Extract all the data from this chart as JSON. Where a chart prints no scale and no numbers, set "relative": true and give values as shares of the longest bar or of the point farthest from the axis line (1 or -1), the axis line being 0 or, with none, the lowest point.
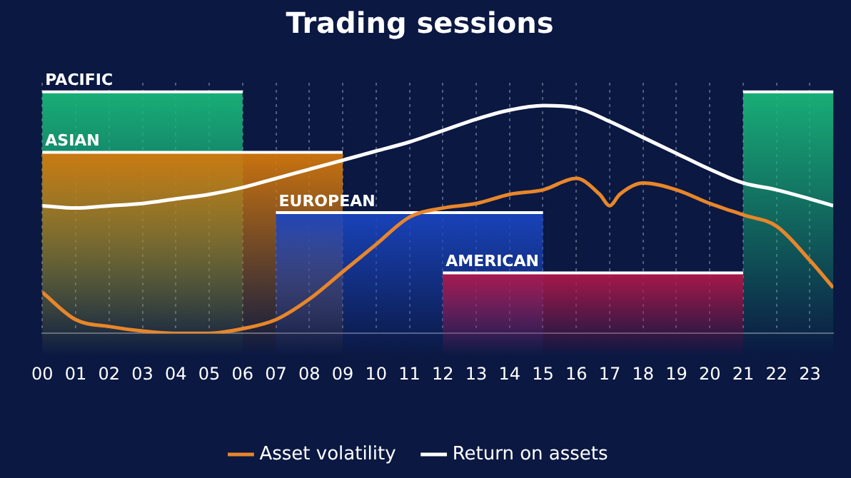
{
  "chart_data": {
    "type": "line",
    "title": "Trading sessions",
    "relative": true,
    "grid": "x",
    "legend": "bottom",
    "xlim": [
      0,
      23.7
    ],
    "xticks": [
      {
        "value": 0,
        "label": "00"
      },
      {
        "value": 1,
        "label": "01"
      },
      {
        "value": 2,
        "label": "02"
      },
      {
        "value": 3,
        "label": "03"
      },
      {
        "value": 4,
        "label": "04"
      },
      {
        "value": 5,
        "label": "05"
      },
      {
        "value": 6,
        "label": "06"
      },
      {
        "value": 7,
        "label": "07"
      },
      {
        "value": 8,
        "label": "08"
      },
      {
        "value": 9,
        "label": "09"
      },
      10,
      11,
      12,
      13,
      14,
      15,
      16,
      17,
      18,
      19,
      20,
      21,
      22,
      23
    ],
    "series": [
      {
        "name": "Asset volatility",
        "color": "#e8862a",
        "x": [
          0,
          1,
          2,
          3,
          4,
          5,
          6,
          7,
          8,
          9,
          10,
          11,
          12,
          13,
          14,
          15,
          16,
          16.7,
          17,
          17.3,
          18,
          19,
          20,
          21,
          22,
          23,
          23.7
        ],
        "values": [
          0.18,
          0.06,
          0.03,
          0.01,
          0,
          0,
          0.02,
          0.06,
          0.15,
          0.27,
          0.39,
          0.51,
          0.55,
          0.57,
          0.61,
          0.63,
          0.68,
          0.61,
          0.56,
          0.61,
          0.66,
          0.63,
          0.57,
          0.52,
          0.47,
          0.32,
          0.2
        ]
      },
      {
        "name": "Return on assets",
        "color": "#ffffff",
        "x": [
          0,
          1,
          2,
          3,
          4,
          5,
          6,
          7,
          8,
          9,
          10,
          11,
          12,
          13,
          14,
          15,
          16,
          17,
          18,
          19,
          20,
          21,
          22,
          23,
          23.7
        ],
        "values": [
          0.56,
          0.55,
          0.56,
          0.57,
          0.59,
          0.61,
          0.64,
          0.68,
          0.72,
          0.76,
          0.8,
          0.84,
          0.89,
          0.94,
          0.98,
          1,
          0.99,
          0.93,
          0.86,
          0.79,
          0.72,
          0.66,
          0.63,
          0.59,
          0.56
        ]
      }
    ],
    "bands": [
      {
        "axis": "x",
        "from": 0,
        "to": 6,
        "label": "PACIFIC",
        "color": "#19b67a"
      },
      {
        "axis": "x",
        "from": 0,
        "to": 9,
        "label": "ASIAN",
        "color": "#d4780c"
      },
      {
        "axis": "x",
        "from": 7,
        "to": 15,
        "label": "EUROPEAN",
        "color": "#1a45c0"
      },
      {
        "axis": "x",
        "from": 12,
        "to": 21,
        "label": "AMERICAN",
        "color": "#b0184a"
      },
      {
        "axis": "x",
        "from": 21,
        "to": 23.7,
        "label": null,
        "color": "#19b67a"
      }
    ]
  }
}
